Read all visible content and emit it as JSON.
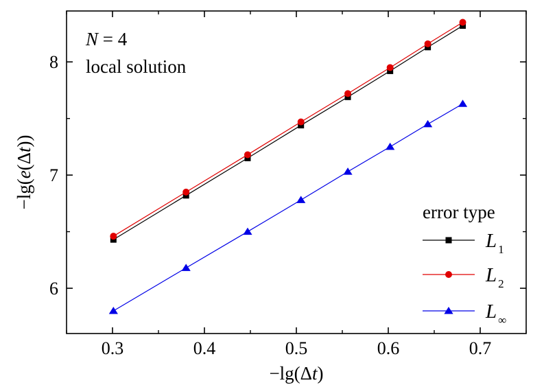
{
  "chart_data": {
    "type": "line",
    "xlabel": "−lg(Δt)",
    "ylabel": "−lg(e(Δt))",
    "xlim": [
      0.25,
      0.75
    ],
    "ylim": [
      5.6,
      8.45
    ],
    "x_ticks": [
      0.3,
      0.4,
      0.5,
      0.6,
      0.7
    ],
    "x_tick_labels": [
      "0.3",
      "0.4",
      "0.5",
      "0.6",
      "0.7"
    ],
    "y_ticks": [
      6,
      7,
      8
    ],
    "y_tick_labels": [
      "6",
      "7",
      "8"
    ],
    "annotations": [
      "N = 4",
      "local solution"
    ],
    "legend_title": "error type",
    "legend_position": "bottom-right",
    "grid": false,
    "x": [
      0.301,
      0.38,
      0.447,
      0.505,
      0.556,
      0.602,
      0.643,
      0.681
    ],
    "series": [
      {
        "name": "L1",
        "label_main": "L",
        "label_sub": "1",
        "color": "#000000",
        "marker": "square",
        "values": [
          6.43,
          6.82,
          7.15,
          7.44,
          7.69,
          7.92,
          8.13,
          8.32
        ]
      },
      {
        "name": "L2",
        "label_main": "L",
        "label_sub": "2",
        "color": "#e00000",
        "marker": "circle",
        "values": [
          6.46,
          6.85,
          7.18,
          7.47,
          7.72,
          7.95,
          8.16,
          8.35
        ]
      },
      {
        "name": "L∞",
        "label_main": "L",
        "label_sub": "∞",
        "color": "#0000e6",
        "marker": "triangle",
        "values": [
          5.8,
          6.18,
          6.5,
          6.78,
          7.03,
          7.25,
          7.45,
          7.63
        ]
      }
    ]
  }
}
